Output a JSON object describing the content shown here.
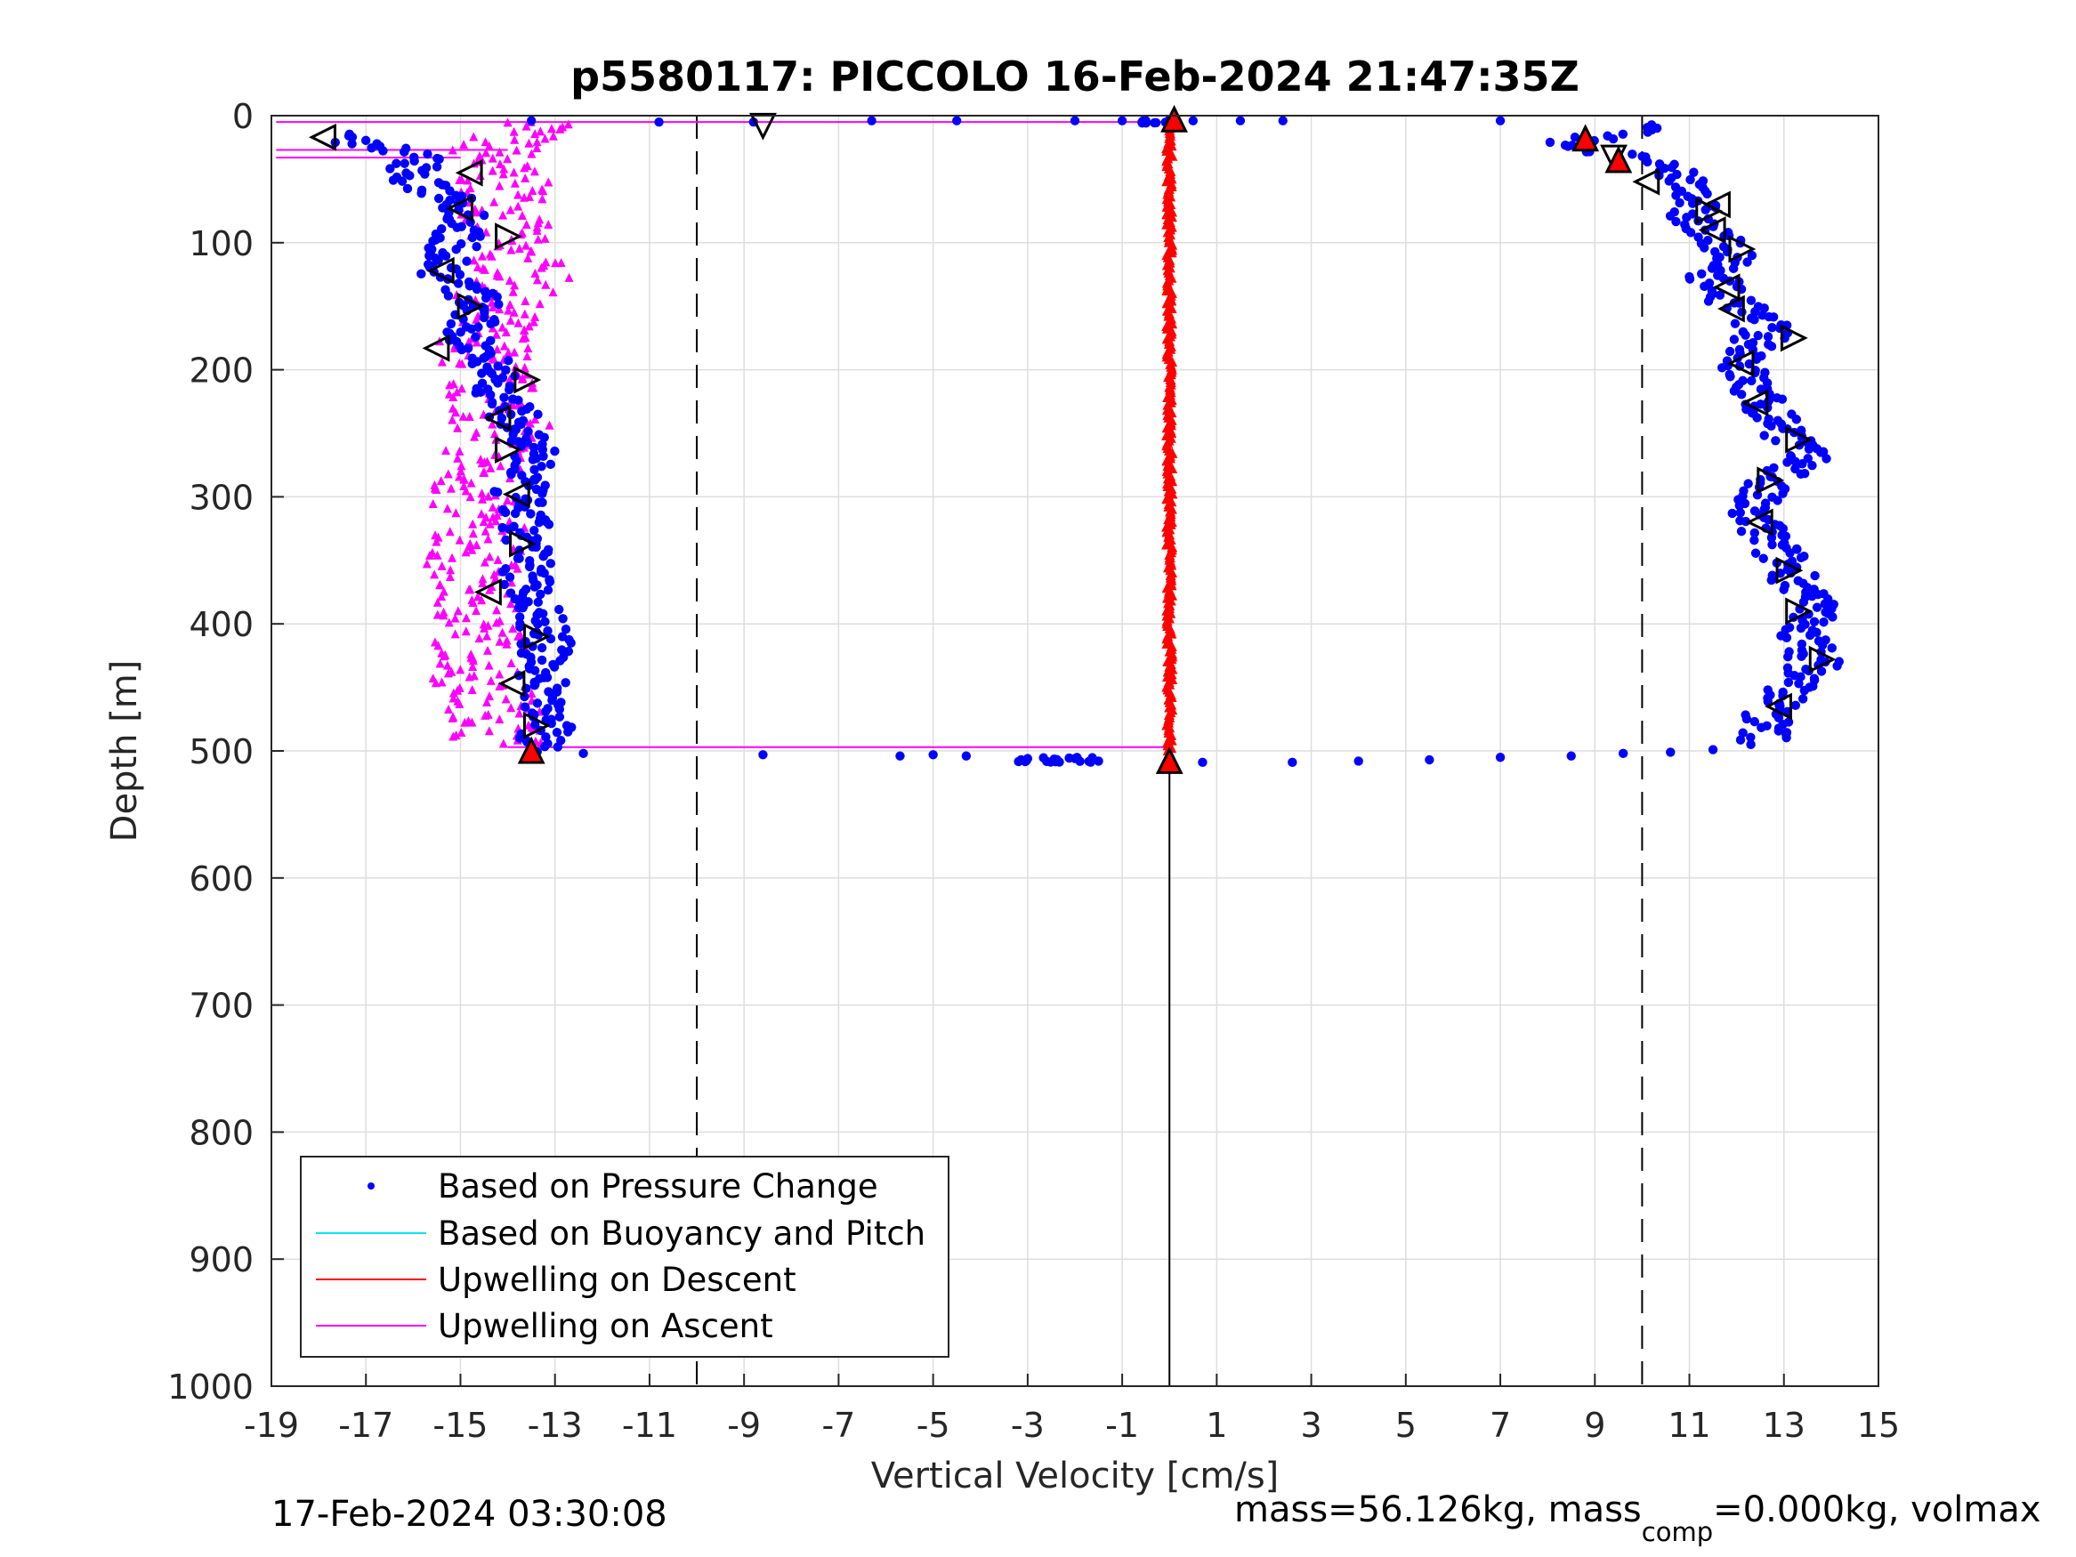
{
  "chart_data": {
    "type": "scatter",
    "title": "p5580117: PICCOLO 16-Feb-2024 21:47:35Z",
    "xlabel": "Vertical Velocity [cm/s]",
    "ylabel": "Depth [m]",
    "xlim": [
      -19,
      15
    ],
    "ylim": [
      0,
      1000
    ],
    "y_reversed": true,
    "grid": true,
    "x_ticks": [
      "-19",
      "-17",
      "-15",
      "-13",
      "-11",
      "-9",
      "-7",
      "-5",
      "-3",
      "-1",
      "1",
      "3",
      "5",
      "7",
      "9",
      "11",
      "13",
      "15"
    ],
    "y_ticks": [
      "0",
      "100",
      "200",
      "300",
      "400",
      "500",
      "600",
      "700",
      "800",
      "900",
      "1000"
    ],
    "reference_lines": {
      "dashed_x": [
        -10,
        10
      ],
      "solid_x": 0,
      "solid_x_depth_range": [
        500,
        1000
      ]
    },
    "legend_position": "bottom-left",
    "legend": [
      {
        "label": "Based on Pressure Change",
        "color": "#0000ff",
        "marker": "dot"
      },
      {
        "label": "Based on Buoyancy and Pitch",
        "color": "#00e5ee",
        "marker": "line"
      },
      {
        "label": "Upwelling on Descent",
        "color": "#ff0000",
        "marker": "line"
      },
      {
        "label": "Upwelling on Ascent",
        "color": "#ff00ff",
        "marker": "line"
      }
    ],
    "series": [
      {
        "name": "Based on Pressure Change",
        "color": "#0000ff",
        "descent_profile": [
          [
            10.4,
            8
          ],
          [
            9.0,
            18
          ],
          [
            8.4,
            22
          ],
          [
            9.6,
            32
          ],
          [
            10.6,
            45
          ],
          [
            11.3,
            60
          ],
          [
            11.0,
            75
          ],
          [
            11.2,
            90
          ],
          [
            11.9,
            105
          ],
          [
            11.5,
            125
          ],
          [
            11.8,
            145
          ],
          [
            12.6,
            165
          ],
          [
            12.4,
            185
          ],
          [
            12.1,
            200
          ],
          [
            12.5,
            225
          ],
          [
            13.0,
            245
          ],
          [
            13.3,
            260
          ],
          [
            13.4,
            275
          ],
          [
            12.6,
            290
          ],
          [
            12.2,
            310
          ],
          [
            12.5,
            325
          ],
          [
            12.8,
            340
          ],
          [
            13.2,
            360
          ],
          [
            13.5,
            380
          ],
          [
            13.6,
            395
          ],
          [
            13.4,
            410
          ],
          [
            13.7,
            430
          ],
          [
            13.2,
            450
          ],
          [
            12.8,
            465
          ],
          [
            12.6,
            480
          ],
          [
            12.6,
            492
          ]
        ],
        "ascent_profile": [
          [
            -17.8,
            15
          ],
          [
            -16.5,
            25
          ],
          [
            -15.8,
            35
          ],
          [
            -16.2,
            50
          ],
          [
            -15.0,
            65
          ],
          [
            -14.8,
            80
          ],
          [
            -15.1,
            95
          ],
          [
            -15.2,
            110
          ],
          [
            -15.4,
            125
          ],
          [
            -14.6,
            145
          ],
          [
            -14.8,
            160
          ],
          [
            -14.9,
            175
          ],
          [
            -14.2,
            195
          ],
          [
            -14.3,
            215
          ],
          [
            -13.9,
            235
          ],
          [
            -13.6,
            255
          ],
          [
            -13.5,
            275
          ],
          [
            -13.8,
            295
          ],
          [
            -13.7,
            315
          ],
          [
            -13.6,
            335
          ],
          [
            -13.6,
            355
          ],
          [
            -13.5,
            375
          ],
          [
            -13.3,
            395
          ],
          [
            -13.2,
            415
          ],
          [
            -13.3,
            435
          ],
          [
            -13.2,
            455
          ],
          [
            -13.1,
            475
          ],
          [
            -13.2,
            490
          ],
          [
            -13.4,
            500
          ]
        ],
        "surface_transition": [
          [
            -13.5,
            4
          ],
          [
            -10.8,
            5
          ],
          [
            -8.8,
            5
          ],
          [
            -6.3,
            4
          ],
          [
            -4.5,
            4
          ],
          [
            -2.0,
            4
          ],
          [
            -1.0,
            4
          ],
          [
            -0.5,
            4
          ],
          [
            0.5,
            4
          ],
          [
            1.5,
            4
          ],
          [
            2.4,
            4
          ],
          [
            7.0,
            4
          ]
        ],
        "bottom_transition": [
          [
            -12.4,
            502
          ],
          [
            -8.6,
            503
          ],
          [
            -5.7,
            504
          ],
          [
            -5.0,
            503
          ],
          [
            -4.3,
            504
          ],
          [
            -3.0,
            506
          ],
          [
            -2.0,
            506
          ],
          [
            -1.5,
            508
          ],
          [
            0.7,
            509
          ],
          [
            2.6,
            509
          ],
          [
            4.0,
            508
          ],
          [
            5.5,
            507
          ],
          [
            7.0,
            505
          ],
          [
            8.5,
            504
          ],
          [
            9.6,
            502
          ],
          [
            10.6,
            501
          ],
          [
            11.5,
            499
          ],
          [
            12.3,
            495
          ]
        ]
      },
      {
        "name": "Upwelling on Descent",
        "color": "#ff0000",
        "x": 0,
        "depth_range": [
          4,
          508
        ]
      },
      {
        "name": "Upwelling on Ascent",
        "color": "#ff00ff",
        "profile": [
          [
            -13.0,
            5
          ],
          [
            -14.2,
            20
          ],
          [
            -14.4,
            40
          ],
          [
            -14.0,
            60
          ],
          [
            -14.1,
            80
          ],
          [
            -14.2,
            100
          ],
          [
            -13.6,
            125
          ],
          [
            -14.3,
            150
          ],
          [
            -14.4,
            170
          ],
          [
            -14.5,
            190
          ],
          [
            -14.4,
            210
          ],
          [
            -14.3,
            230
          ],
          [
            -14.1,
            245
          ],
          [
            -14.4,
            265
          ],
          [
            -14.7,
            285
          ],
          [
            -14.8,
            305
          ],
          [
            -14.6,
            325
          ],
          [
            -14.7,
            345
          ],
          [
            -14.8,
            365
          ],
          [
            -14.6,
            385
          ],
          [
            -14.6,
            405
          ],
          [
            -14.5,
            425
          ],
          [
            -14.6,
            445
          ],
          [
            -14.3,
            465
          ],
          [
            -14.1,
            480
          ],
          [
            -14.2,
            495
          ]
        ],
        "horizontal_segments": [
          {
            "y": 5,
            "x": [
              -18.9,
              0
            ]
          },
          {
            "y": 27,
            "x": [
              -18.9,
              -14.0
            ]
          },
          {
            "y": 33,
            "x": [
              -18.9,
              -15.0
            ]
          },
          {
            "y": 497,
            "x": [
              -14.0,
              0
            ]
          }
        ]
      }
    ],
    "markers": {
      "outline_color": "#000000",
      "highlight_color": "#ff0000",
      "triangles_left": [
        [
          -17.9,
          17
        ],
        [
          -14.8,
          45
        ],
        [
          -15.0,
          73
        ],
        [
          -15.4,
          122
        ],
        [
          -15.5,
          183
        ],
        [
          -14.2,
          238
        ],
        [
          -13.8,
          298
        ],
        [
          -14.4,
          375
        ],
        [
          -13.9,
          447
        ],
        [
          12.1,
          195
        ],
        [
          11.9,
          152
        ],
        [
          11.5,
          90
        ],
        [
          12.5,
          320
        ],
        [
          12.9,
          465
        ],
        [
          10.1,
          52
        ],
        [
          11.6,
          70
        ],
        [
          11.8,
          135
        ],
        [
          12.4,
          226
        ]
      ],
      "triangles_right": [
        [
          -14.0,
          95
        ],
        [
          -14.8,
          150
        ],
        [
          -13.6,
          208
        ],
        [
          -14.0,
          263
        ],
        [
          -13.7,
          337
        ],
        [
          -13.4,
          410
        ],
        [
          -13.4,
          480
        ],
        [
          11.4,
          75
        ],
        [
          12.1,
          105
        ],
        [
          13.2,
          175
        ],
        [
          13.3,
          255
        ],
        [
          12.7,
          287
        ],
        [
          13.1,
          358
        ],
        [
          13.3,
          390
        ],
        [
          13.8,
          428
        ]
      ],
      "triangles_down": [
        [
          -8.6,
          8
        ],
        [
          9.4,
          33
        ]
      ],
      "triangles_up_red": [
        [
          0.1,
          3
        ],
        [
          -13.5,
          500
        ],
        [
          0,
          508
        ],
        [
          8.8,
          18
        ],
        [
          9.5,
          35
        ]
      ]
    }
  },
  "footer": {
    "timestamp": "17-Feb-2024 03:30:08",
    "mass_text": "mass=56.126kg, mass",
    "mass_sub": "comp",
    "mass_tail": "=0.000kg, volmax"
  }
}
